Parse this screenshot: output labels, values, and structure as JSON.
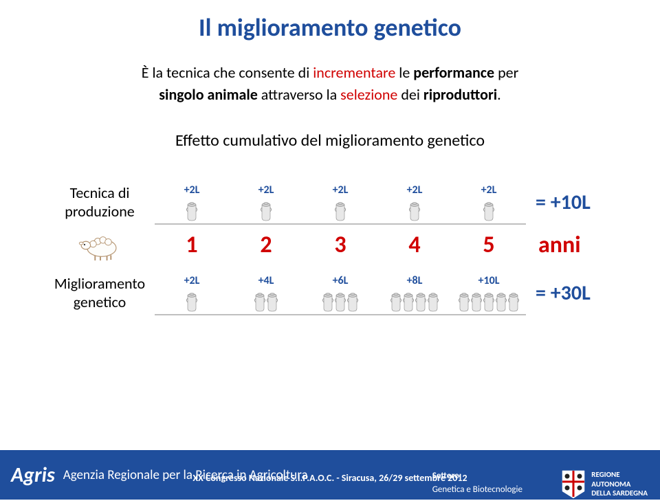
{
  "title": "Il miglioramento genetico",
  "subtitle": {
    "line1_pre": "È la tecnica che consente di ",
    "line1_red": "incrementare",
    "line1_post": " le ",
    "line1_end": "performance",
    "line1_tail": " per",
    "line2_pre": "singolo animale",
    "line2_mid": " attraverso la ",
    "line2_red": "selezione",
    "line2_post": " dei ",
    "line2_end": "riproduttori",
    "line2_dot": "."
  },
  "cumul_label": "Effetto cumulativo del miglioramento genetico",
  "row1": {
    "label": "Tecnica di produzione",
    "items": [
      {
        "label": "+2L",
        "cans": 1
      },
      {
        "label": "+2L",
        "cans": 1
      },
      {
        "label": "+2L",
        "cans": 1
      },
      {
        "label": "+2L",
        "cans": 1
      },
      {
        "label": "+2L",
        "cans": 1
      }
    ],
    "result": "= +10L"
  },
  "years": [
    "1",
    "2",
    "3",
    "4",
    "5"
  ],
  "anni": "anni",
  "row2": {
    "label": "Miglioramento genetico",
    "items": [
      {
        "label": "+2L",
        "cans": 1
      },
      {
        "label": "+4L",
        "cans": 2
      },
      {
        "label": "+6L",
        "cans": 3
      },
      {
        "label": "+8L",
        "cans": 4
      },
      {
        "label": "+10L",
        "cans": 5
      }
    ],
    "result": "= +30L"
  },
  "footer": {
    "brand": "Agris",
    "agency": "Agenzia Regionale per la Ricerca in Agricoltura",
    "settore_label": "Settore:",
    "settore_value": "Genetica e Biotecnologie",
    "region_l1": "REGIONE",
    "region_l2": "AUTONOMA",
    "region_l3": "DELLA SARDEGNA",
    "congress": "XX Congresso Nazionale S.I.P.A.O.C. - Siracusa, 26/29 settembre 2012"
  },
  "colors": {
    "title": "#1f4e9c",
    "accent_red": "#d00000",
    "footer_bg": "#1f4e9c",
    "text": "#000000",
    "line": "#bfbfbf"
  }
}
